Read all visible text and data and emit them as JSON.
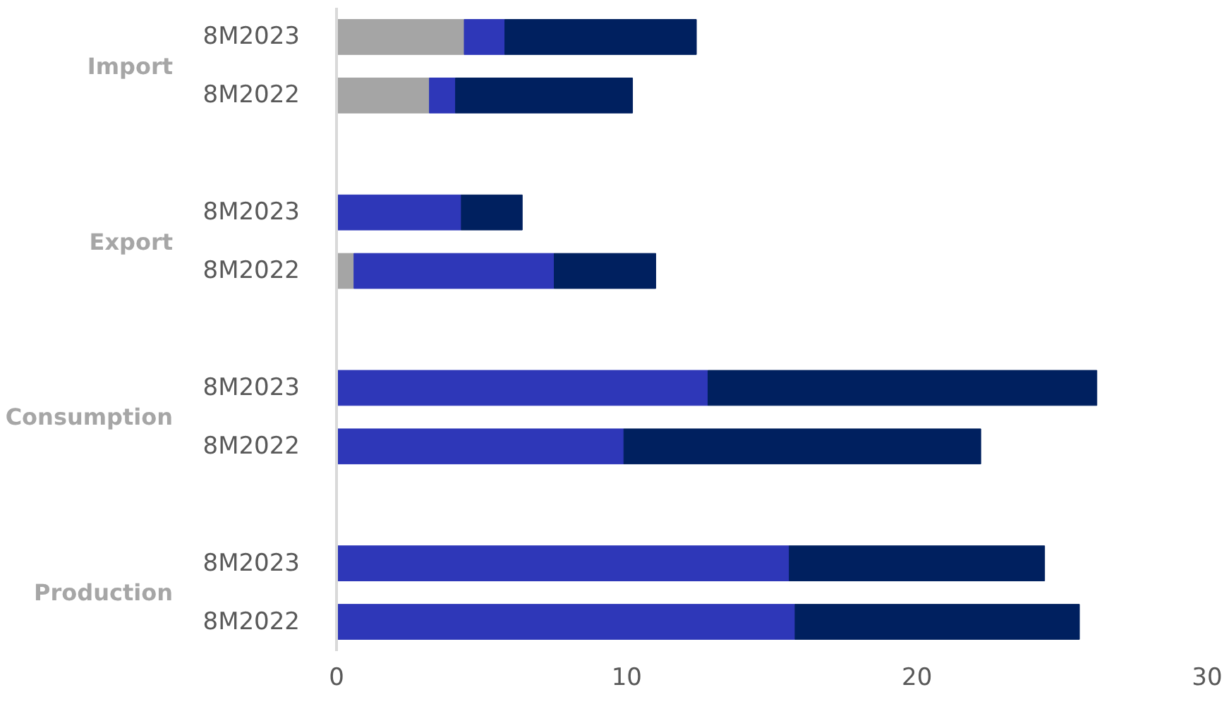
{
  "chart_data": {
    "type": "bar",
    "orientation": "horizontal",
    "stacked": true,
    "categories": [
      "8M2023",
      "8M2022",
      null,
      "8M2023",
      "8M2022",
      null,
      "8M2023",
      "8M2022",
      null,
      "8M2023",
      "8M2022"
    ],
    "series": [
      {
        "color": "#a5a5a5",
        "values": [
          4.4,
          3.2,
          null,
          0,
          0.6,
          null,
          0,
          0,
          null,
          0,
          0
        ]
      },
      {
        "color": "#2e37b8",
        "values": [
          1.4,
          0.9,
          null,
          4.3,
          6.9,
          null,
          12.8,
          9.9,
          null,
          15.6,
          15.8
        ]
      },
      {
        "color": "#00205f",
        "values": [
          6.6,
          6.1,
          null,
          2.1,
          3.5,
          null,
          13.4,
          12.3,
          null,
          8.8,
          9.8
        ]
      }
    ],
    "annotations": [
      "Import",
      "Export",
      "Consumption",
      "Production"
    ],
    "xlim": [
      0,
      30
    ],
    "xticks": [
      0,
      10,
      20,
      30
    ],
    "grid": false
  }
}
